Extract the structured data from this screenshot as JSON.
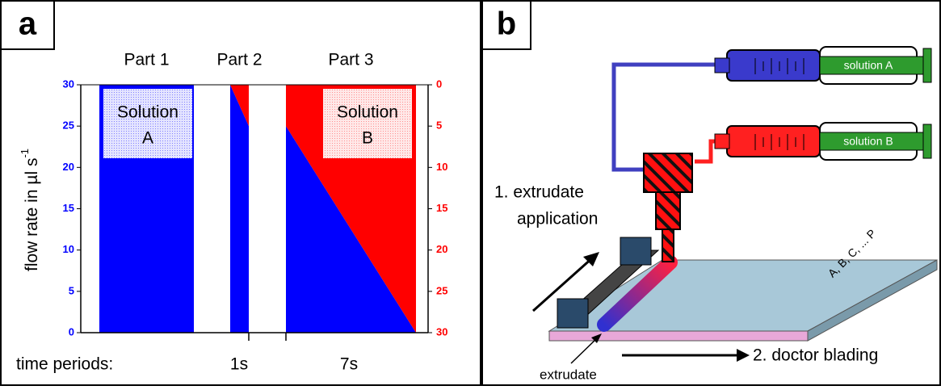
{
  "chart_data": {
    "type": "dual-flow",
    "panel": "a",
    "y_label": "flow rate in µl s",
    "y_label_sup": "-1",
    "categories": [
      "Part 1",
      "Part 2",
      "Part 3"
    ],
    "ylim": [
      0,
      30
    ],
    "yticks": [
      0,
      5,
      10,
      15,
      20,
      25,
      30
    ],
    "y2lim": [
      0,
      30
    ],
    "y2ticks": [
      0,
      5,
      10,
      15,
      20,
      25,
      30
    ],
    "y2_reversed": true,
    "series": [
      {
        "label": [
          "Solution",
          "A"
        ],
        "color": "#0000ff",
        "axis": "y",
        "values": [
          [
            30,
            30
          ],
          [
            30,
            25
          ],
          [
            25,
            0
          ]
        ]
      },
      {
        "label": [
          "Solution",
          "B"
        ],
        "color": "#ff0000",
        "axis": "y2",
        "values": [
          [
            0,
            0
          ],
          [
            0,
            5
          ],
          [
            5,
            30
          ]
        ]
      }
    ],
    "time_label": "time periods:",
    "durations": [
      null,
      "1s",
      "7s"
    ]
  },
  "diagram": {
    "panel": "b",
    "syringes": [
      "solution A",
      "solution B"
    ],
    "step1": [
      "1. extrudate",
      "application"
    ],
    "plate_label": "A, B, C, ... P",
    "extrudate": "extrudate",
    "step2": "2. doctor blading"
  }
}
